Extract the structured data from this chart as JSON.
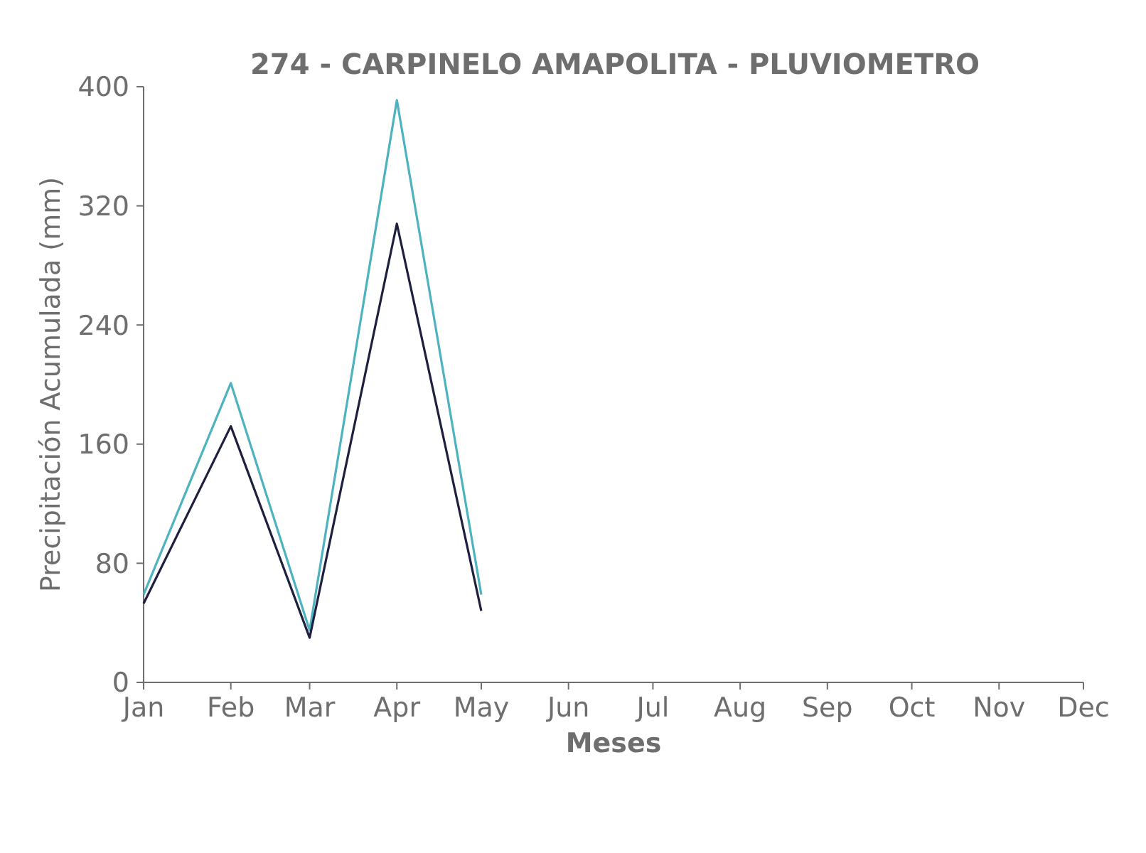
{
  "chart_data": {
    "type": "line",
    "title": "274 - CARPINELO AMAPOLITA - PLUVIOMETRO",
    "xlabel": "Meses",
    "ylabel": "Precipitación Acumulada (mm)",
    "x": [
      "--01-01",
      "--02-01",
      "--03-01",
      "--04-01",
      "--05-01"
    ],
    "series": [
      {
        "color": "#4db3bf",
        "values": [
          59,
          201,
          35,
          391,
          59
        ]
      },
      {
        "color": "#1f1f3f",
        "values": [
          53,
          172,
          30,
          308,
          48
        ]
      }
    ],
    "xlim": [
      "--01-01",
      "--12-01"
    ],
    "xticks": [
      {
        "value": "--01-01",
        "label": "Jan"
      },
      {
        "value": "--02-01",
        "label": "Feb"
      },
      {
        "value": "--03-01",
        "label": "Mar"
      },
      {
        "value": "--04-01",
        "label": "Apr"
      },
      {
        "value": "--05-01",
        "label": "May"
      },
      {
        "value": "--06-01",
        "label": "Jun"
      },
      {
        "value": "--07-01",
        "label": "Jul"
      },
      {
        "value": "--08-01",
        "label": "Aug"
      },
      {
        "value": "--09-01",
        "label": "Sep"
      },
      {
        "value": "--10-01",
        "label": "Oct"
      },
      {
        "value": "--11-01",
        "label": "Nov"
      },
      {
        "value": "--12-01",
        "label": "Dec"
      }
    ],
    "ylim": [
      0,
      400
    ],
    "yticks": [
      0,
      80,
      160,
      240,
      320,
      400
    ],
    "grid": false,
    "marker": "none",
    "line_style": "solid"
  }
}
